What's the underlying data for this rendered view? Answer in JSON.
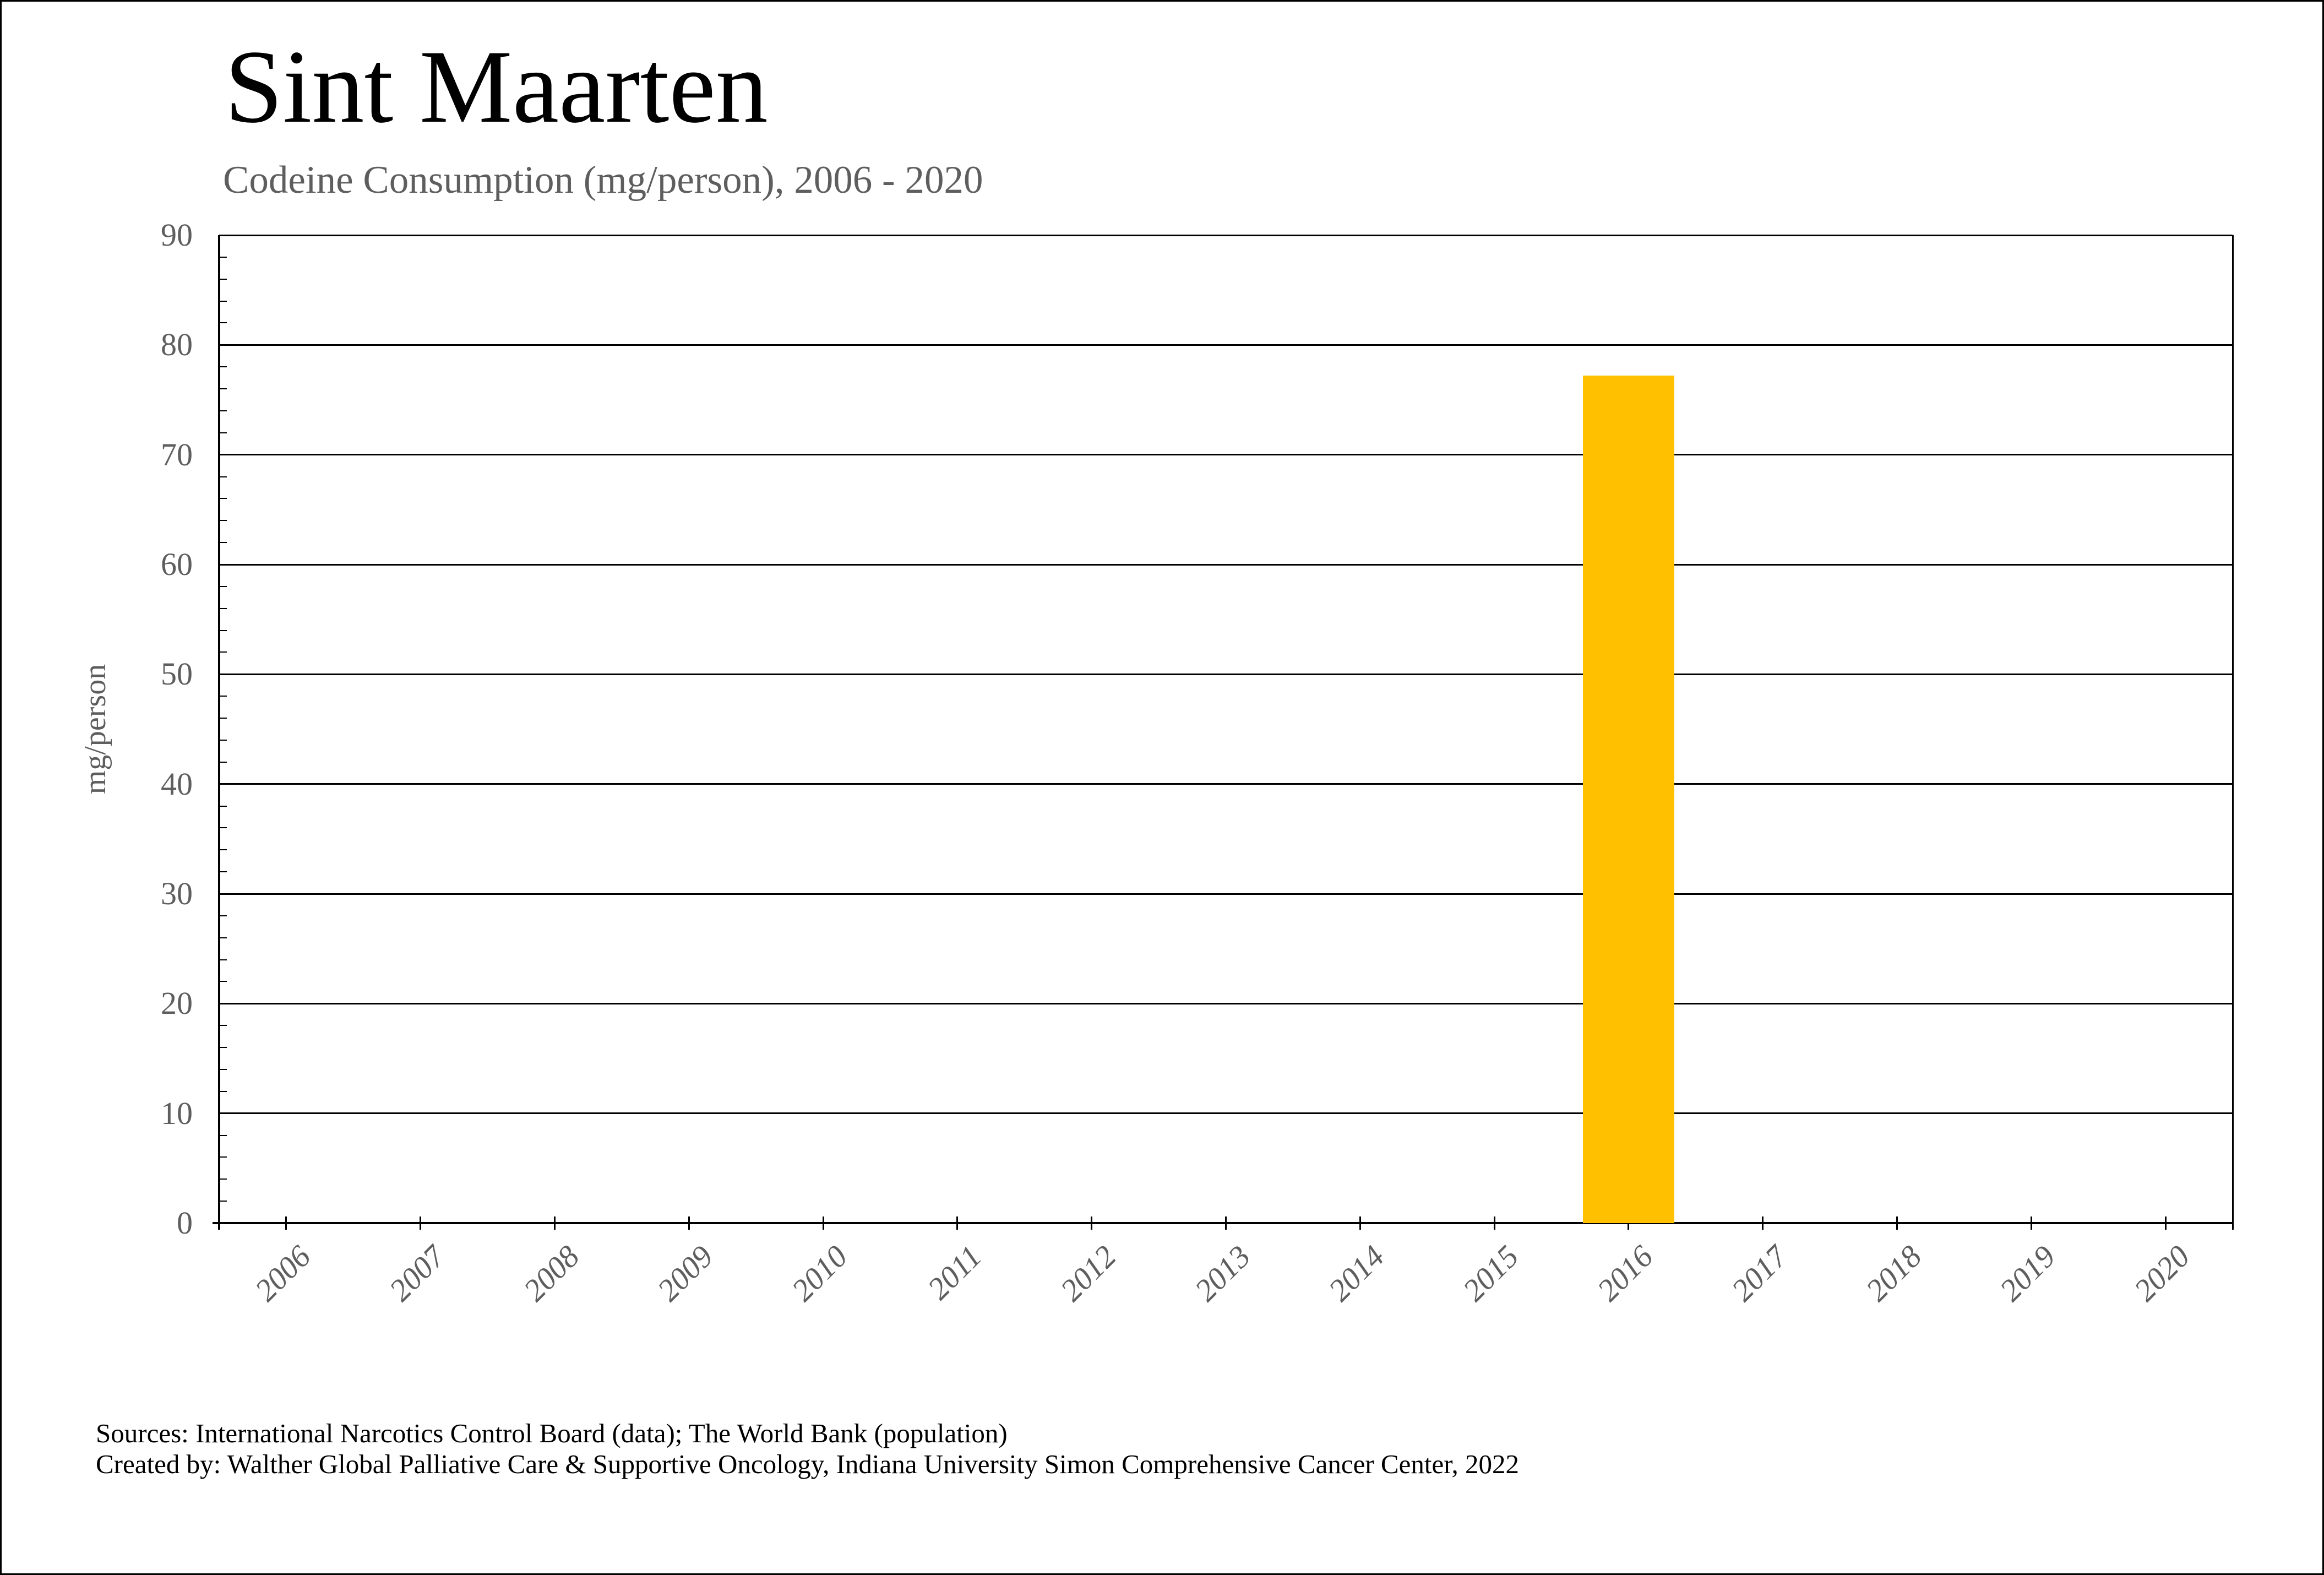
{
  "header": {
    "title": "Sint Maarten",
    "subtitle": "Codeine Consumption (mg/person), 2006 - 2020"
  },
  "chart_data": {
    "type": "bar",
    "title": "Codeine Consumption (mg/person), 2006 - 2020",
    "categories": [
      "2006",
      "2007",
      "2008",
      "2009",
      "2010",
      "2011",
      "2012",
      "2013",
      "2014",
      "2015",
      "2016",
      "2017",
      "2018",
      "2019",
      "2020"
    ],
    "values": [
      null,
      null,
      null,
      null,
      null,
      null,
      null,
      null,
      null,
      null,
      77.2,
      null,
      null,
      null,
      null
    ],
    "series": [
      {
        "name": "Codeine Consumption (mg/person)",
        "values": [
          null,
          null,
          null,
          null,
          null,
          null,
          null,
          null,
          null,
          null,
          77.2,
          null,
          null,
          null,
          null
        ]
      }
    ],
    "xlabel": "",
    "ylabel": "mg/person",
    "ylim": [
      0,
      90
    ],
    "ytick_step": 10,
    "yminor_tick_step": 2,
    "grid": true,
    "legend": false,
    "bar_color": "#FFC000",
    "axis_color": "#000000",
    "label_color": "#5e5e5e",
    "ytick_labels": [
      "0",
      "10",
      "20",
      "30",
      "40",
      "50",
      "60",
      "70",
      "80",
      "90"
    ]
  },
  "footer": {
    "line1": "Sources: International Narcotics Control Board (data); The World Bank (population)",
    "line2": "Created by: Walther Global Palliative Care & Supportive Oncology, Indiana University Simon Comprehensive Cancer Center, 2022"
  }
}
